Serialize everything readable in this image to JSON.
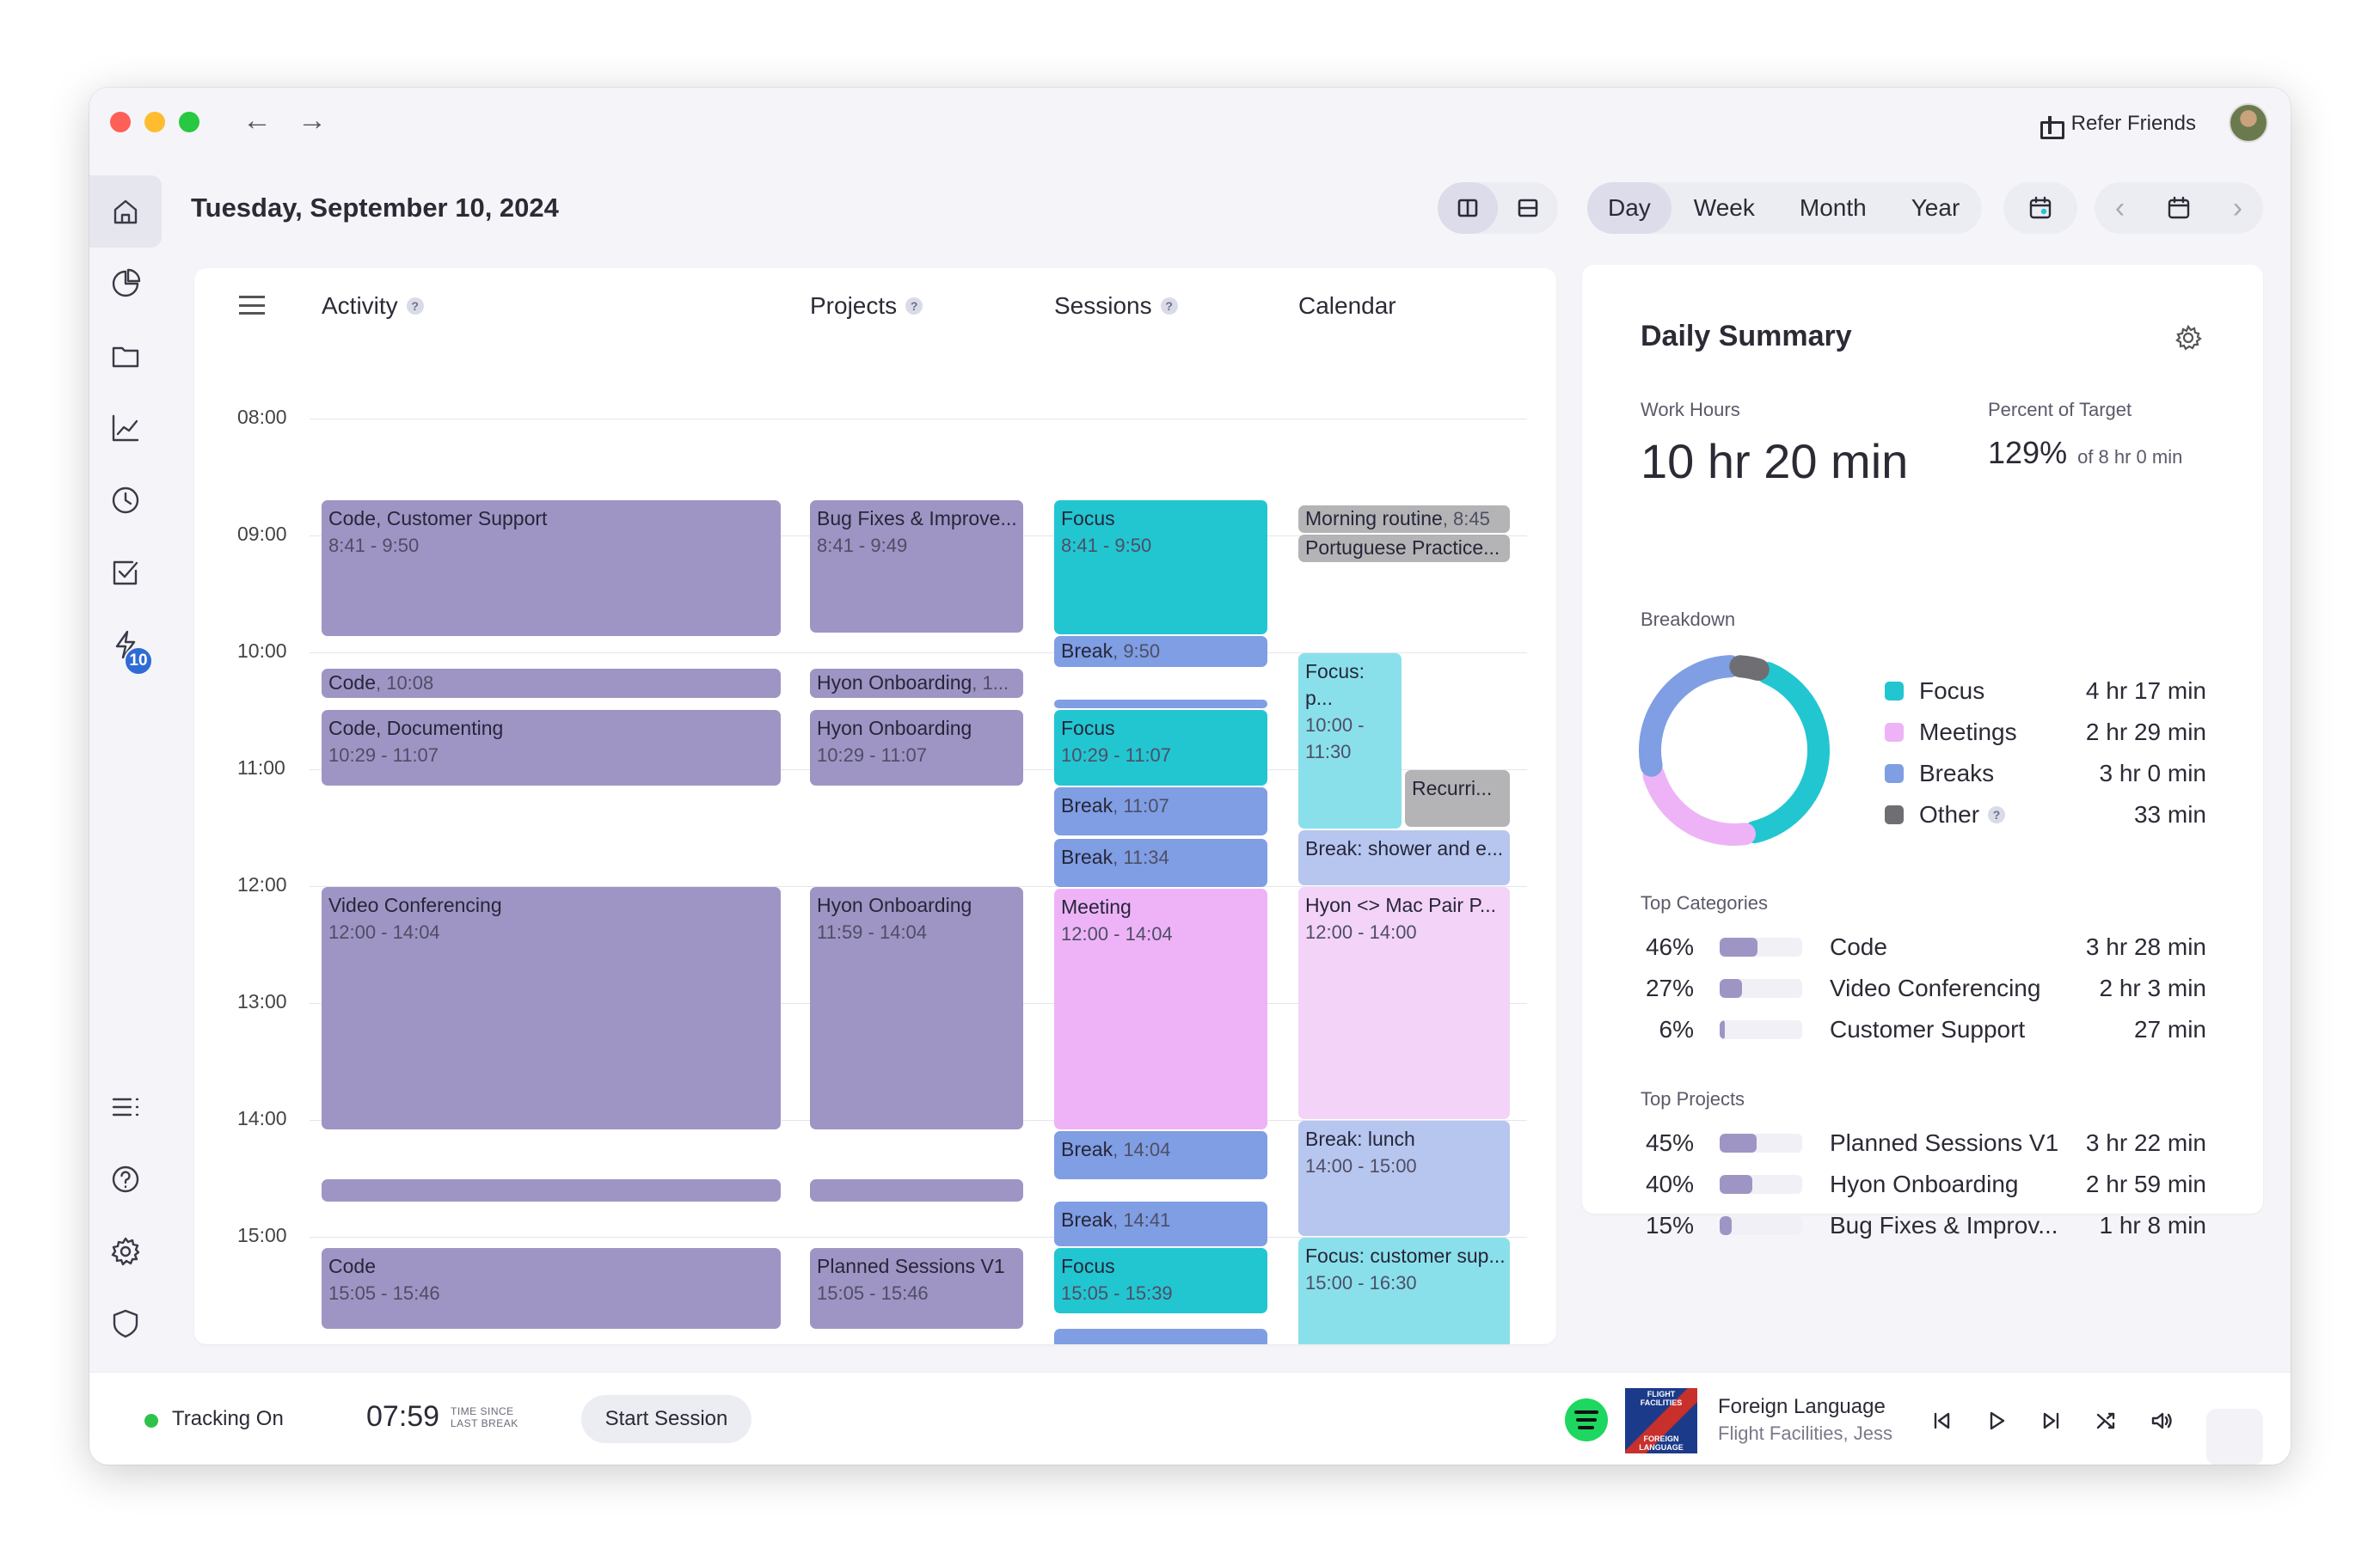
{
  "window": {
    "refer_label": "Refer Friends",
    "back": "←",
    "forward": "→"
  },
  "sidebar": {
    "items": [
      "home-icon",
      "pie-chart-icon",
      "folder-icon",
      "line-chart-icon",
      "clock-icon",
      "checkbox-icon",
      "lightning-icon"
    ],
    "badge": "10",
    "bottom_items": [
      "list-icon",
      "help-icon",
      "gear-icon",
      "shield-icon"
    ]
  },
  "header": {
    "date": "Tuesday, September 10, 2024",
    "ranges": [
      "Day",
      "Week",
      "Month",
      "Year"
    ],
    "active_range": "Day",
    "prev": "‹",
    "next": "›"
  },
  "timeline": {
    "columns": {
      "activity": "Activity",
      "projects": "Projects",
      "sessions": "Sessions",
      "calendar": "Calendar"
    },
    "help_glyph": "?",
    "hours": [
      "08:00",
      "09:00",
      "10:00",
      "11:00",
      "12:00",
      "13:00",
      "14:00",
      "15:00"
    ],
    "activity": [
      {
        "title": "Code, Customer Support",
        "sub": "8:41 - 9:50"
      },
      {
        "title": "Code",
        "sub": ", 10:08"
      },
      {
        "title": "Code, Documenting",
        "sub": "10:29 - 11:07"
      },
      {
        "title": "Video Conferencing",
        "sub": "12:00 - 14:04"
      },
      {
        "title": "",
        "sub": ""
      },
      {
        "title": "Code",
        "sub": "15:05 - 15:46"
      }
    ],
    "projects": [
      {
        "title": "Bug Fixes & Improve...",
        "sub": "8:41 - 9:49"
      },
      {
        "title": "Hyon Onboarding",
        "sub": ", 1..."
      },
      {
        "title": "Hyon Onboarding",
        "sub": "10:29 - 11:07"
      },
      {
        "title": "Hyon Onboarding",
        "sub": "11:59 - 14:04"
      },
      {
        "title": "",
        "sub": ""
      },
      {
        "title": "Planned Sessions V1",
        "sub": "15:05 - 15:46"
      }
    ],
    "sessions": [
      {
        "title": "Focus",
        "sub": "8:41 - 9:50"
      },
      {
        "title": "Break",
        "sub": ", 9:50"
      },
      {
        "title": "",
        "sub": ""
      },
      {
        "title": "Focus",
        "sub": "10:29 - 11:07"
      },
      {
        "title": "Break",
        "sub": ", 11:07"
      },
      {
        "title": "Break",
        "sub": ", 11:34"
      },
      {
        "title": "Meeting",
        "sub": "12:00 - 14:04"
      },
      {
        "title": "Break",
        "sub": ", 14:04"
      },
      {
        "title": "Break",
        "sub": ", 14:41"
      },
      {
        "title": "Focus",
        "sub": "15:05 - 15:39"
      },
      {
        "title": "",
        "sub": ""
      }
    ],
    "calendar": [
      {
        "title": "Morning routine",
        "sub": ", 8:45"
      },
      {
        "title": "Portuguese Practice...",
        "sub": ""
      },
      {
        "title": "Focus: p...",
        "sub": "10:00 - 11:30"
      },
      {
        "title": "Recurri...",
        "sub": ""
      },
      {
        "title": "Break: shower and e...",
        "sub": ""
      },
      {
        "title": "Hyon <> Mac Pair P...",
        "sub": "12:00 - 14:00"
      },
      {
        "title": "Break: lunch",
        "sub": "14:00 - 15:00"
      },
      {
        "title": "Focus: customer sup...",
        "sub": "15:00 - 16:30"
      }
    ]
  },
  "summary": {
    "title": "Daily Summary",
    "work_hours_label": "Work Hours",
    "work_hours": "10 hr 20 min",
    "percent_label": "Percent of Target",
    "percent": "129%",
    "percent_of": "of 8 hr 0 min",
    "breakdown_label": "Breakdown",
    "breakdown": [
      {
        "name": "Focus",
        "value": "4 hr 17 min",
        "minutes": 257,
        "color": "#22c6d1"
      },
      {
        "name": "Meetings",
        "value": "2 hr 29 min",
        "minutes": 149,
        "color": "#eeb3f7"
      },
      {
        "name": "Breaks",
        "value": "3 hr 0 min",
        "minutes": 180,
        "color": "#7f9ee3"
      },
      {
        "name": "Other",
        "value": "33 min",
        "minutes": 33,
        "color": "#6f6f73"
      }
    ],
    "top_categories_label": "Top Categories",
    "top_categories": [
      {
        "pct": "46%",
        "fraction": 0.46,
        "name": "Code",
        "value": "3 hr 28 min"
      },
      {
        "pct": "27%",
        "fraction": 0.27,
        "name": "Video Conferencing",
        "value": "2 hr 3 min"
      },
      {
        "pct": "6%",
        "fraction": 0.06,
        "name": "Customer Support",
        "value": "27 min"
      }
    ],
    "top_projects_label": "Top Projects",
    "top_projects": [
      {
        "pct": "45%",
        "fraction": 0.45,
        "name": "Planned Sessions V1",
        "value": "3 hr 22 min"
      },
      {
        "pct": "40%",
        "fraction": 0.4,
        "name": "Hyon Onboarding",
        "value": "2 hr 59 min"
      },
      {
        "pct": "15%",
        "fraction": 0.15,
        "name": "Bug Fixes & Improv...",
        "value": "1 hr 8 min"
      }
    ]
  },
  "bottom": {
    "tracking": "Tracking On",
    "timer": "07:59",
    "timer_caption_1": "TIME SINCE",
    "timer_caption_2": "LAST BREAK",
    "start_session": "Start Session",
    "album_top": "FLIGHT FACILITIES",
    "album_bottom": "FOREIGN LANGUAGE",
    "track_title": "Foreign Language",
    "track_artist": "Flight Facilities, Jess"
  }
}
